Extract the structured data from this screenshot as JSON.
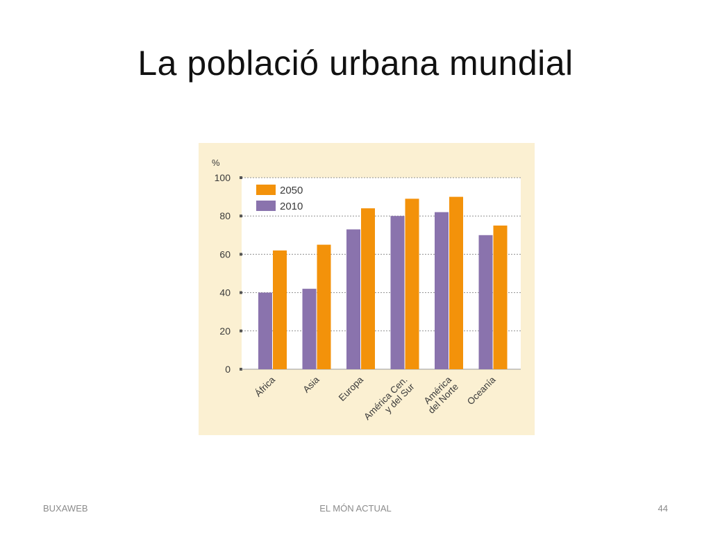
{
  "slide": {
    "title": "La població urbana mundial"
  },
  "footer": {
    "left": "BUXAWEB",
    "center": "EL MÓN ACTUAL",
    "page_number": "44"
  },
  "chart_data": {
    "type": "bar",
    "title": "",
    "xlabel": "",
    "ylabel": "%",
    "ylim": [
      0,
      100
    ],
    "yticks": [
      0,
      20,
      40,
      60,
      80,
      100
    ],
    "grid": true,
    "legend_position": "top-left",
    "categories": [
      [
        "África"
      ],
      [
        "Asia"
      ],
      [
        "Europa"
      ],
      [
        "América Cen.",
        "y del Sur"
      ],
      [
        "América",
        "del Norte"
      ],
      [
        "Oceanía"
      ]
    ],
    "series": [
      {
        "name": "2010",
        "color": "#8a73ad",
        "values": [
          40,
          42,
          73,
          80,
          82,
          70
        ]
      },
      {
        "name": "2050",
        "color": "#f3920a",
        "values": [
          62,
          65,
          84,
          89,
          90,
          75
        ]
      }
    ],
    "legend_order": [
      "2050",
      "2010"
    ],
    "colors": {
      "panel": "#fbf0d2",
      "plot": "#ffffff",
      "grid": "#8f8f8f",
      "text": "#3a3a3a"
    }
  }
}
